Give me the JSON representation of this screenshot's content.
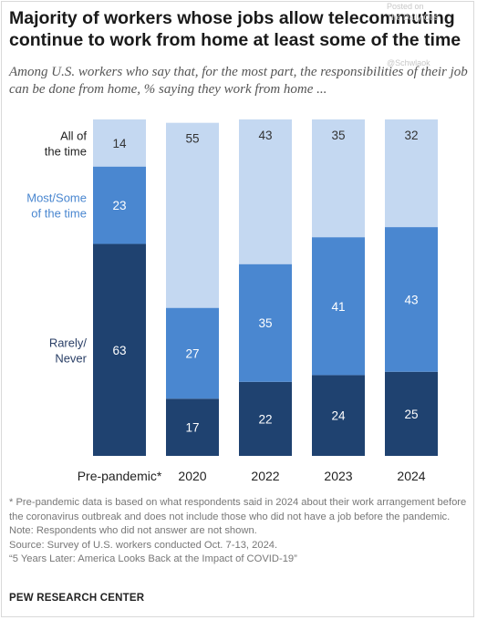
{
  "title": "Majority of workers whose jobs allow telecommuting continue to work from home at least some of the time",
  "subtitle": "Among U.S. workers who say that, for the most part, the responsibilities of their job can be done from home, % saying they work from home ...",
  "watermark": {
    "posted_on": "Posted on",
    "source": "The Daily Cus",
    "handle": "@Schwlaok"
  },
  "chart_data": {
    "type": "bar",
    "stacked": true,
    "categories": [
      "Pre-pandemic*",
      "2020",
      "2022",
      "2023",
      "2024"
    ],
    "series": [
      {
        "name": "Rarely/ Never",
        "label_lines": [
          "Rarely/",
          "Never"
        ],
        "values": [
          63,
          17,
          22,
          24,
          25
        ],
        "color": "#1f4270",
        "label_color": "#2a3f66"
      },
      {
        "name": "Most/Some of the time",
        "label_lines": [
          "Most/Some",
          "of the time"
        ],
        "values": [
          23,
          27,
          35,
          41,
          43
        ],
        "color": "#4a87d0",
        "label_color": "#4a87d0"
      },
      {
        "name": "All of the time",
        "label_lines": [
          "All of",
          "the time"
        ],
        "values": [
          14,
          55,
          43,
          35,
          32
        ],
        "color": "#c4d8f1",
        "label_color": "#222222"
      }
    ],
    "ylim": [
      0,
      100
    ],
    "grid": false,
    "legend": "left-inline"
  },
  "notes": {
    "footnote": "* Pre-pandemic data is based on what respondents said in 2024 about their work arrangement before the coronavirus outbreak and does not include those who did not have a job before the pandemic.",
    "note": "Note: Respondents who did not answer are not shown.",
    "source": "Source: Survey of U.S. workers conducted Oct. 7-13, 2024.",
    "report": "“5 Years Later: America Looks Back at the Impact of COVID-19”"
  },
  "brand": "PEW RESEARCH CENTER"
}
